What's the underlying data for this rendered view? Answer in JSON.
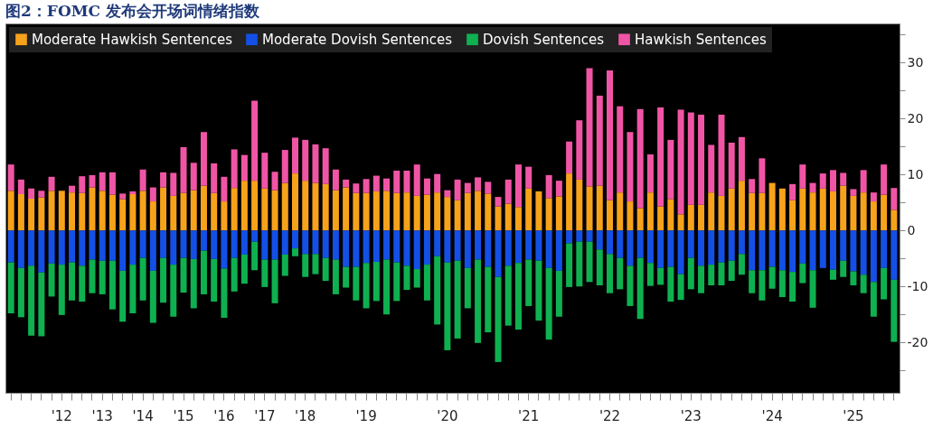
{
  "chart_data": {
    "type": "bar",
    "title": "图2：FOMC 发布会开场词情绪指数",
    "stacked": true,
    "legend": "top left",
    "grid": false,
    "categories": [
      null,
      null,
      null,
      null,
      null,
      "'12",
      null,
      null,
      null,
      "'13",
      null,
      null,
      null,
      "'14",
      null,
      null,
      null,
      "'15",
      null,
      null,
      null,
      "'16",
      null,
      null,
      null,
      "'17",
      null,
      null,
      null,
      "'18",
      null,
      null,
      null,
      null,
      null,
      "'19",
      null,
      null,
      null,
      null,
      null,
      null,
      null,
      "'20",
      null,
      null,
      null,
      null,
      null,
      null,
      null,
      "'21",
      null,
      null,
      null,
      null,
      null,
      null,
      null,
      "'22",
      null,
      null,
      null,
      null,
      null,
      null,
      null,
      "'23",
      null,
      null,
      null,
      null,
      null,
      null,
      null,
      "'24",
      null,
      null,
      null,
      null,
      null,
      null,
      null,
      "'25",
      null,
      null,
      null,
      null
    ],
    "ylim": [
      -29,
      37
    ],
    "yticks": [
      -20,
      {
        "value": -25,
        "label": null
      },
      {
        "value": -15,
        "label": null
      },
      -10,
      {
        "value": -5,
        "label": null
      },
      0,
      {
        "value": 5,
        "label": null
      },
      10,
      {
        "value": 15,
        "label": null
      },
      20,
      {
        "value": 25,
        "label": null
      },
      30,
      {
        "value": 35,
        "label": null
      }
    ],
    "series": [
      {
        "name": "Moderate Hawkish Sentences",
        "color": "#f7a21b",
        "values": [
          7.1,
          6.5,
          5.7,
          5.9,
          7.1,
          7.1,
          6.8,
          6.7,
          7.7,
          7.1,
          6.4,
          5.6,
          6.5,
          7.1,
          5.2,
          7.7,
          6.2,
          6.7,
          7.2,
          8.0,
          6.7,
          5.2,
          7.6,
          8.9,
          8.9,
          7.5,
          7.2,
          8.5,
          10.2,
          8.9,
          8.5,
          8.3,
          7.2,
          7.7,
          6.7,
          6.7,
          7.0,
          7.1,
          6.7,
          6.8,
          6.2,
          6.4,
          6.8,
          6.0,
          5.4,
          6.7,
          7.1,
          6.6,
          4.3,
          4.8,
          4.2,
          7.5,
          7.0,
          5.8,
          6.1,
          10.2,
          9.1,
          7.9,
          8.0,
          5.4,
          6.8,
          5.2,
          4.0,
          6.8,
          4.3,
          5.6,
          2.9,
          4.6,
          4.6,
          6.8,
          6.2,
          7.5,
          8.9,
          6.7,
          6.7,
          8.5,
          7.5,
          5.4,
          7.5,
          6.8,
          7.5,
          7.0,
          8.0,
          6.2,
          6.8,
          5.2,
          6.4,
          3.7
        ]
      },
      {
        "name": "Moderate Dovish Sentences",
        "color": "#1450e6",
        "values": [
          -5.7,
          -6.7,
          -6.3,
          -7.5,
          -5.9,
          -6.1,
          -5.7,
          -6.3,
          -5.2,
          -5.4,
          -5.4,
          -7.2,
          -6.1,
          -4.9,
          -7.2,
          -4.9,
          -6.1,
          -4.9,
          -5.1,
          -3.6,
          -5.1,
          -6.8,
          -4.9,
          -4.3,
          -2.0,
          -5.2,
          -5.2,
          -4.3,
          -3.2,
          -4.2,
          -4.2,
          -4.9,
          -5.2,
          -6.5,
          -6.5,
          -5.8,
          -5.6,
          -5.2,
          -5.7,
          -6.3,
          -6.9,
          -6.1,
          -4.6,
          -5.7,
          -5.4,
          -6.7,
          -5.2,
          -6.5,
          -8.3,
          -6.3,
          -5.8,
          -5.2,
          -5.4,
          -6.7,
          -7.2,
          -2.3,
          -2.0,
          -2.0,
          -3.4,
          -4.2,
          -4.9,
          -6.3,
          -4.9,
          -5.8,
          -6.7,
          -6.5,
          -7.8,
          -4.9,
          -6.3,
          -6.1,
          -5.7,
          -5.4,
          -4.2,
          -7.1,
          -7.1,
          -6.5,
          -7.1,
          -7.4,
          -5.9,
          -7.1,
          -6.7,
          -7.0,
          -5.4,
          -7.3,
          -7.9,
          -9.2,
          -6.7,
          -8.8
        ]
      },
      {
        "name": "Dovish Sentences",
        "color": "#0fb050",
        "values": [
          -9.1,
          -8.8,
          -12.5,
          -11.4,
          -5.9,
          -9.0,
          -6.8,
          -6.4,
          -6.0,
          -6.0,
          -8.7,
          -9.1,
          -8.7,
          -7.6,
          -9.3,
          -8.0,
          -9.3,
          -6.2,
          -8.8,
          -7.8,
          -7.6,
          -8.8,
          -6.0,
          -5.2,
          -5.1,
          -4.9,
          -7.8,
          -3.8,
          -1.4,
          -4.1,
          -3.6,
          -4.1,
          -6.2,
          -3.7,
          -6.0,
          -8.1,
          -7.0,
          -9.8,
          -6.9,
          -4.3,
          -3.3,
          -6.4,
          -12.2,
          -15.7,
          -13.9,
          -7.2,
          -14.9,
          -11.7,
          -15.2,
          -10.7,
          -11.9,
          -8.3,
          -10.7,
          -12.8,
          -8.2,
          -7.8,
          -8.0,
          -7.2,
          -6.4,
          -7.0,
          -5.6,
          -7.2,
          -10.9,
          -4.1,
          -3.0,
          -6.2,
          -4.6,
          -5.6,
          -4.9,
          -3.7,
          -4.1,
          -3.6,
          -3.7,
          -4.1,
          -5.4,
          -3.9,
          -4.8,
          -5.3,
          -3.5,
          -6.7,
          0,
          -1.8,
          -2.9,
          -2.5,
          -3.3,
          -6.2,
          -5.6,
          -11.1
        ]
      },
      {
        "name": "Hawkish Sentences",
        "color": "#f055a5",
        "values": [
          4.7,
          2.6,
          1.8,
          1.2,
          2.5,
          0,
          1.2,
          3.0,
          2.2,
          3.3,
          4.0,
          1.0,
          0.5,
          3.8,
          2.5,
          2.7,
          4.1,
          8.2,
          4.9,
          9.6,
          5.3,
          4.4,
          6.9,
          4.6,
          14.3,
          6.4,
          3.3,
          5.9,
          6.4,
          7.3,
          6.9,
          6.4,
          3.7,
          1.4,
          1.7,
          2.5,
          2.8,
          2.2,
          4.0,
          3.9,
          5.6,
          2.9,
          3.3,
          1.2,
          3.7,
          1.8,
          2.4,
          2.1,
          1.7,
          4.3,
          7.6,
          3.9,
          0,
          4.1,
          2.8,
          5.7,
          10.6,
          21.1,
          16.1,
          23.2,
          15.4,
          12.4,
          17.7,
          6.8,
          17.7,
          10.6,
          18.7,
          16.5,
          16.1,
          8.5,
          14.5,
          8.2,
          7.8,
          2.5,
          6.2,
          0,
          0,
          2.9,
          4.3,
          1.7,
          2.7,
          3.8,
          2.3,
          1.2,
          4.0,
          1.6,
          5.4,
          3.9
        ]
      }
    ]
  }
}
